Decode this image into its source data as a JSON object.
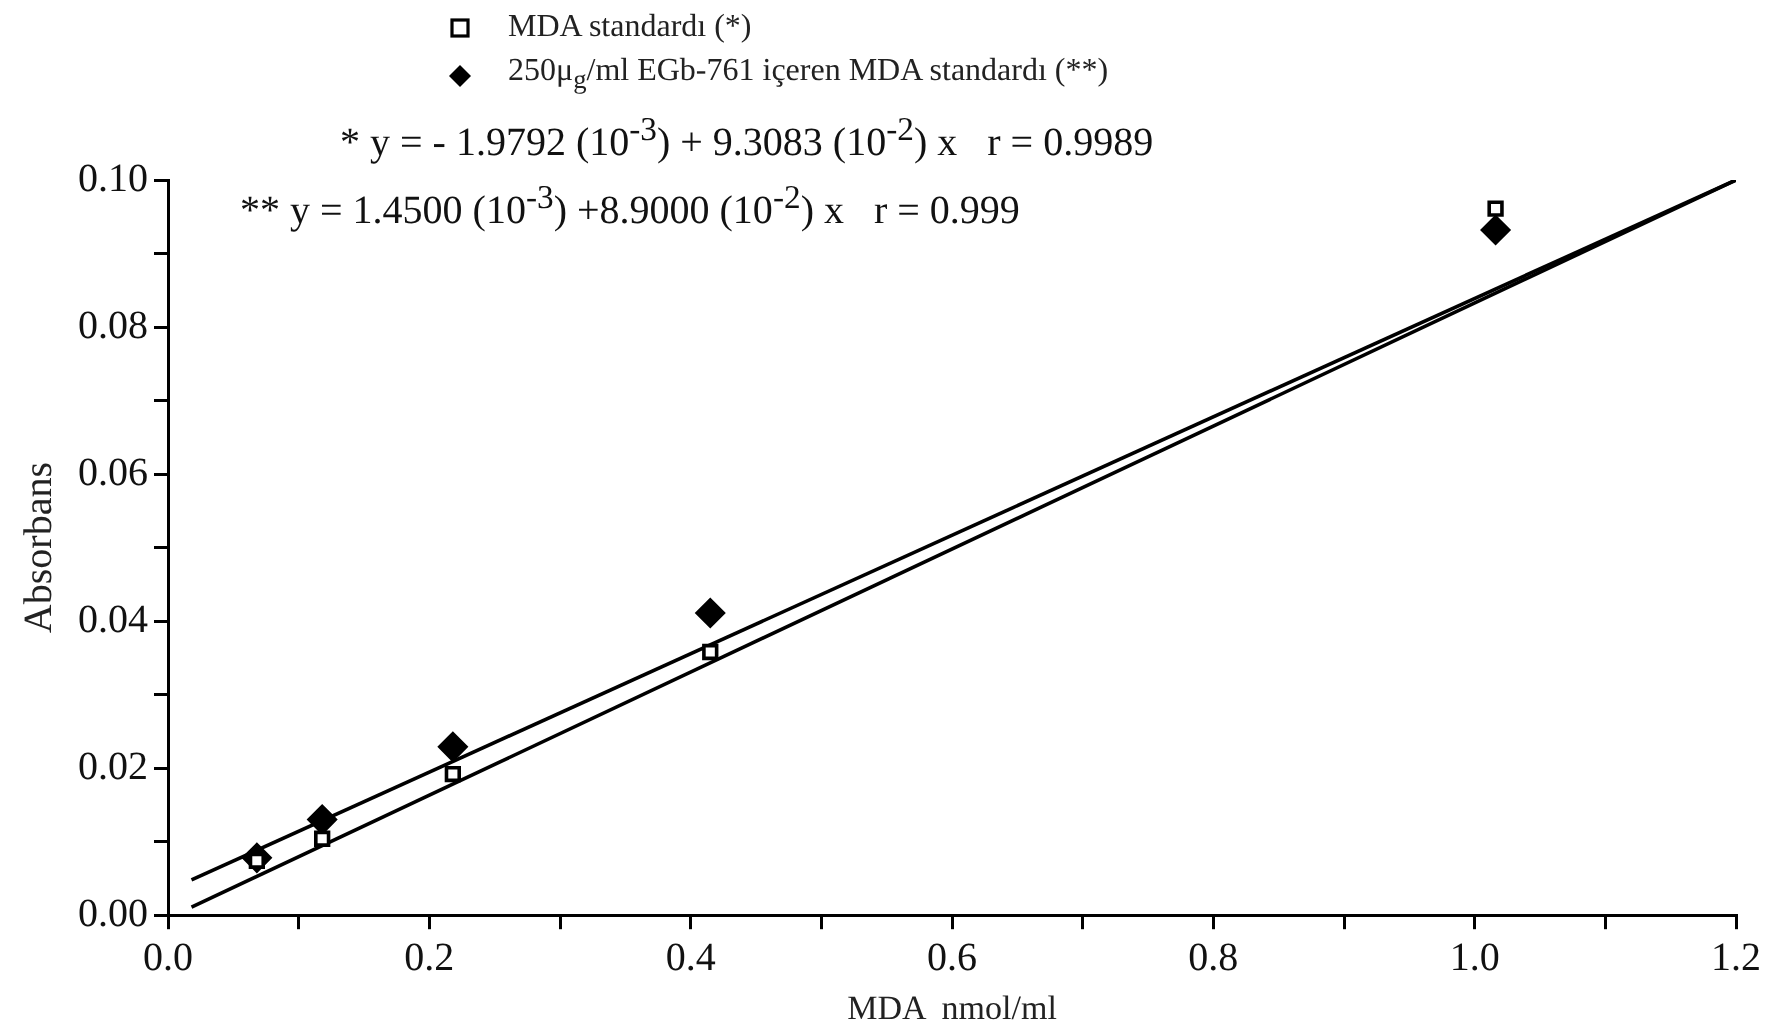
{
  "chart_data": {
    "type": "scatter",
    "xlabel": "MDA  nmol/ml",
    "ylabel": "Absorbans",
    "xlim": [
      0,
      1.2
    ],
    "ylim": [
      0,
      0.1
    ],
    "xticks": [
      {
        "value": 0,
        "label": "0.0"
      },
      {
        "value": 0.1,
        "label": null
      },
      {
        "value": 0.2,
        "label": "0.2"
      },
      {
        "value": 0.3,
        "label": null
      },
      {
        "value": 0.4,
        "label": "0.4"
      },
      {
        "value": 0.5,
        "label": null
      },
      {
        "value": 0.6,
        "label": "0.6"
      },
      {
        "value": 0.7,
        "label": null
      },
      {
        "value": 0.8,
        "label": "0.8"
      },
      {
        "value": 0.9,
        "label": null
      },
      {
        "value": 1,
        "label": "1.0"
      },
      {
        "value": 1.1,
        "label": null
      },
      {
        "value": 1.2,
        "label": "1.2"
      }
    ],
    "yticks": [
      {
        "value": 0,
        "label": "0.00"
      },
      {
        "value": 0.01,
        "label": null
      },
      {
        "value": 0.02,
        "label": "0.02"
      },
      {
        "value": 0.03,
        "label": null
      },
      {
        "value": 0.04,
        "label": "0.04"
      },
      {
        "value": 0.05,
        "label": null
      },
      {
        "value": 0.06,
        "label": "0.06"
      },
      {
        "value": 0.07,
        "label": null
      },
      {
        "value": 0.08,
        "label": "0.08"
      },
      {
        "value": 0.09,
        "label": null
      },
      {
        "value": 0.1,
        "label": "0.10"
      }
    ],
    "grid": false,
    "legend": "top",
    "series": [
      {
        "name": "MDA standardı (*)",
        "marker": "square",
        "color": "#000000",
        "x": [
          0.068,
          0.118,
          0.218,
          0.415,
          1.016
        ],
        "values": [
          0.0074,
          0.0104,
          0.0192,
          0.0358,
          0.0961
        ]
      },
      {
        "name": "250μ$_{g}$/ml EGb-761 içeren MDA standardı (**)",
        "marker": "diamond",
        "color": "#000000",
        "x": [
          0.068,
          0.118,
          0.218,
          0.415,
          1.016
        ],
        "values": [
          0.0078,
          0.013,
          0.0229,
          0.0411,
          0.0932
        ]
      },
      {
        "type": "line",
        "marker": "none",
        "color": "#000000",
        "x": [
          0.018,
          1.2
        ],
        "values": [
          0.0011,
          0.1
        ]
      },
      {
        "type": "line",
        "marker": "none",
        "color": "#000000",
        "x": [
          0.018,
          1.2
        ],
        "values": [
          0.0048,
          0.1
        ]
      }
    ],
    "annotations": [
      "* y = - 1.9792 (10$^{-3}$) + 9.3083 (10$^{-2}$) x   r = 0.9989",
      "** y = 1.4500 (10$^{-3}$) +8.9000 (10$^{-2}$) x   r = 0.999"
    ]
  }
}
